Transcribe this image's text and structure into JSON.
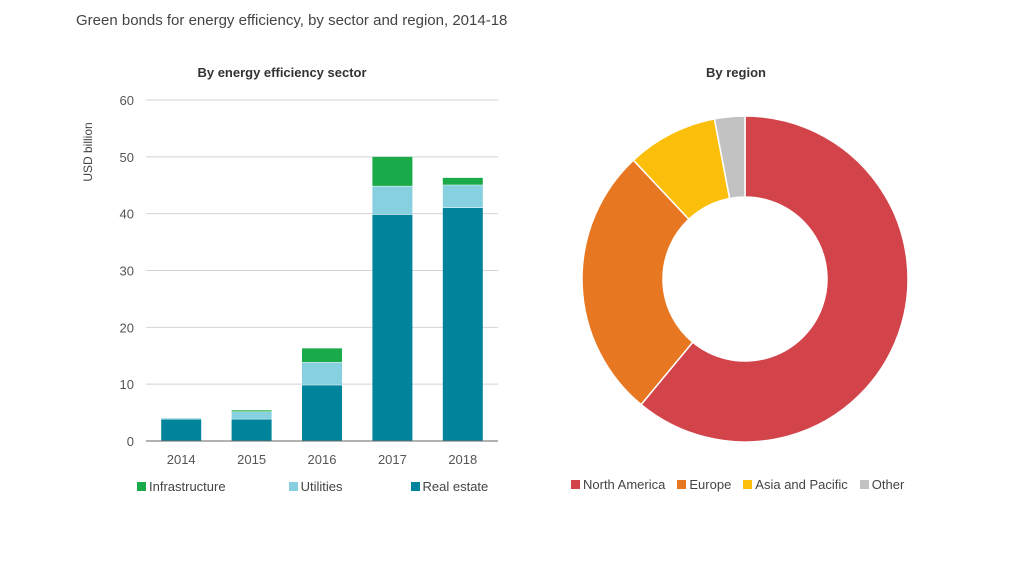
{
  "title": "Green bonds for energy efficiency, by sector and region, 2014-18",
  "colors": {
    "infrastructure": "#1aaa4a",
    "utilities": "#86d0e0",
    "real_estate": "#00849b",
    "north_america": "#d2434a",
    "europe": "#e87722",
    "asia_pacific": "#fbbe0b",
    "other": "#c2c2c2"
  },
  "chart_data": [
    {
      "type": "bar",
      "stacked": true,
      "title": "By energy efficiency sector",
      "ylabel": "USD billion",
      "xlabel": "",
      "ylim": [
        0,
        60
      ],
      "yticks": [
        "0",
        "10",
        "20",
        "30",
        "40",
        "50",
        "60"
      ],
      "grid": true,
      "legend_position": "bottom",
      "categories": [
        "2014",
        "2015",
        "2016",
        "2017",
        "2018"
      ],
      "series": [
        {
          "name": "Real estate",
          "values": [
            3.8,
            3.8,
            9.8,
            39.8,
            41.0
          ]
        },
        {
          "name": "Utilities",
          "values": [
            0.2,
            1.3,
            4.0,
            5.0,
            4.0
          ]
        },
        {
          "name": "Infrastructure",
          "values": [
            0.0,
            0.3,
            2.5,
            5.2,
            1.3
          ]
        }
      ],
      "legend": [
        "Infrastructure",
        "Utilities",
        "Real estate"
      ]
    },
    {
      "type": "pie",
      "donut": true,
      "title": "By region",
      "legend_position": "bottom",
      "slices": [
        {
          "label": "North America",
          "value": 61
        },
        {
          "label": "Europe",
          "value": 27
        },
        {
          "label": "Asia and Pacific",
          "value": 9
        },
        {
          "label": "Other",
          "value": 3
        }
      ]
    }
  ]
}
